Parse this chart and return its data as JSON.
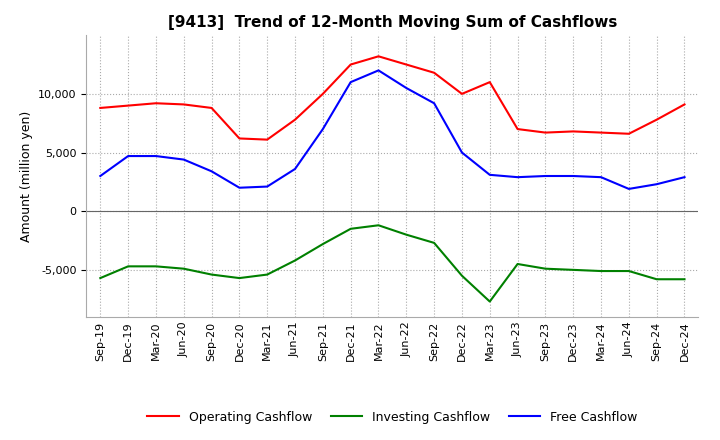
{
  "title": "[9413]  Trend of 12-Month Moving Sum of Cashflows",
  "ylabel": "Amount (million yen)",
  "x_labels": [
    "Sep-19",
    "Dec-19",
    "Mar-20",
    "Jun-20",
    "Sep-20",
    "Dec-20",
    "Mar-21",
    "Jun-21",
    "Sep-21",
    "Dec-21",
    "Mar-22",
    "Jun-22",
    "Sep-22",
    "Dec-22",
    "Mar-23",
    "Jun-23",
    "Sep-23",
    "Dec-23",
    "Mar-24",
    "Jun-24",
    "Sep-24",
    "Dec-24"
  ],
  "operating_cashflow": [
    8800,
    9000,
    9200,
    9100,
    8800,
    6200,
    6100,
    7800,
    10000,
    12500,
    13200,
    12500,
    11800,
    10000,
    11000,
    7000,
    6700,
    6800,
    6700,
    6600,
    7800,
    9100
  ],
  "investing_cashflow": [
    -5700,
    -4700,
    -4700,
    -4900,
    -5400,
    -5700,
    -5400,
    -4200,
    -2800,
    -1500,
    -1200,
    -2000,
    -2700,
    -5500,
    -7700,
    -4500,
    -4900,
    -5000,
    -5100,
    -5100,
    -5800,
    -5800
  ],
  "free_cashflow": [
    3000,
    4700,
    4700,
    4400,
    3400,
    2000,
    2100,
    3600,
    7000,
    11000,
    12000,
    10500,
    9200,
    5000,
    3100,
    2900,
    3000,
    3000,
    2900,
    1900,
    2300,
    2900
  ],
  "operating_color": "#ff0000",
  "investing_color": "#008000",
  "free_color": "#0000ff",
  "ylim_min": -9000,
  "ylim_max": 15000,
  "yticks": [
    -5000,
    0,
    5000,
    10000
  ],
  "background_color": "#ffffff",
  "grid_color": "#aaaaaa",
  "title_fontsize": 11,
  "label_fontsize": 9,
  "tick_fontsize": 8,
  "legend_labels": [
    "Operating Cashflow",
    "Investing Cashflow",
    "Free Cashflow"
  ]
}
